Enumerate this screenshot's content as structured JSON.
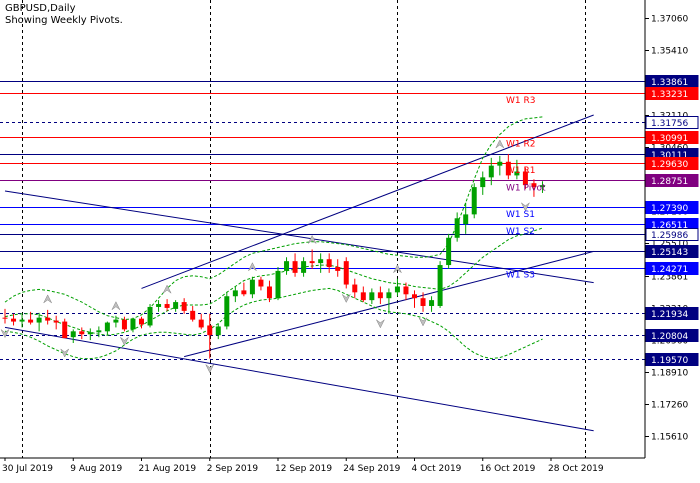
{
  "chart_data": {
    "type": "candlestick",
    "symbol_label": "GBPUSD,Daily",
    "subtitle": "Showing Weekly Pivots.",
    "ylim": [
      1.145,
      1.38
    ],
    "y_ticks": [
      1.3706,
      1.3541,
      1.33761,
      1.3211,
      1.3046,
      1.2881,
      1.2716,
      1.2551,
      1.23861,
      1.2221,
      1.2056,
      1.1891,
      1.1726,
      1.1561
    ],
    "x_tick_labels": [
      "30 Jul 2019",
      "9 Aug 2019",
      "21 Aug 2019",
      "2 Sep 2019",
      "12 Sep 2019",
      "24 Sep 2019",
      "4 Oct 2019",
      "16 Oct 2019",
      "28 Oct 2019"
    ],
    "x_tick_index": [
      0,
      8,
      16,
      24,
      32,
      40,
      48,
      56,
      64
    ],
    "vertical_grid_index": [
      2,
      24,
      46,
      68
    ],
    "num_slots": 70,
    "candles": [
      {
        "o": 1.217,
        "h": 1.2215,
        "l": 1.214,
        "c": 1.2165
      },
      {
        "o": 1.2165,
        "h": 1.219,
        "l": 1.213,
        "c": 1.215
      },
      {
        "o": 1.215,
        "h": 1.2185,
        "l": 1.212,
        "c": 1.216
      },
      {
        "o": 1.216,
        "h": 1.22,
        "l": 1.2135,
        "c": 1.2145
      },
      {
        "o": 1.2145,
        "h": 1.2195,
        "l": 1.21,
        "c": 1.217
      },
      {
        "o": 1.217,
        "h": 1.221,
        "l": 1.2135,
        "c": 1.2155
      },
      {
        "o": 1.2155,
        "h": 1.218,
        "l": 1.211,
        "c": 1.2145
      },
      {
        "o": 1.215,
        "h": 1.2165,
        "l": 1.208,
        "c": 1.2065
      },
      {
        "o": 1.207,
        "h": 1.211,
        "l": 1.204,
        "c": 1.21
      },
      {
        "o": 1.21,
        "h": 1.212,
        "l": 1.206,
        "c": 1.2085
      },
      {
        "o": 1.2085,
        "h": 1.2115,
        "l": 1.2055,
        "c": 1.2095
      },
      {
        "o": 1.2095,
        "h": 1.2125,
        "l": 1.207,
        "c": 1.2105
      },
      {
        "o": 1.21,
        "h": 1.215,
        "l": 1.208,
        "c": 1.2145
      },
      {
        "o": 1.2145,
        "h": 1.218,
        "l": 1.212,
        "c": 1.216
      },
      {
        "o": 1.216,
        "h": 1.2175,
        "l": 1.21,
        "c": 1.211
      },
      {
        "o": 1.211,
        "h": 1.217,
        "l": 1.2095,
        "c": 1.2165
      },
      {
        "o": 1.2165,
        "h": 1.2175,
        "l": 1.2115,
        "c": 1.2135
      },
      {
        "o": 1.213,
        "h": 1.224,
        "l": 1.212,
        "c": 1.2225
      },
      {
        "o": 1.2225,
        "h": 1.226,
        "l": 1.22,
        "c": 1.224
      },
      {
        "o": 1.224,
        "h": 1.2265,
        "l": 1.2205,
        "c": 1.222
      },
      {
        "o": 1.2215,
        "h": 1.226,
        "l": 1.22,
        "c": 1.225
      },
      {
        "o": 1.225,
        "h": 1.227,
        "l": 1.219,
        "c": 1.2205
      },
      {
        "o": 1.2205,
        "h": 1.223,
        "l": 1.215,
        "c": 1.216
      },
      {
        "o": 1.216,
        "h": 1.219,
        "l": 1.211,
        "c": 1.212
      },
      {
        "o": 1.213,
        "h": 1.219,
        "l": 1.196,
        "c": 1.208
      },
      {
        "o": 1.208,
        "h": 1.214,
        "l": 1.206,
        "c": 1.2125
      },
      {
        "o": 1.2125,
        "h": 1.23,
        "l": 1.211,
        "c": 1.228
      },
      {
        "o": 1.228,
        "h": 1.233,
        "l": 1.225,
        "c": 1.231
      },
      {
        "o": 1.231,
        "h": 1.235,
        "l": 1.228,
        "c": 1.229
      },
      {
        "o": 1.229,
        "h": 1.238,
        "l": 1.227,
        "c": 1.2365
      },
      {
        "o": 1.2365,
        "h": 1.238,
        "l": 1.231,
        "c": 1.233
      },
      {
        "o": 1.233,
        "h": 1.236,
        "l": 1.225,
        "c": 1.227
      },
      {
        "o": 1.227,
        "h": 1.243,
        "l": 1.226,
        "c": 1.241
      },
      {
        "o": 1.241,
        "h": 1.248,
        "l": 1.239,
        "c": 1.246
      },
      {
        "o": 1.246,
        "h": 1.25,
        "l": 1.238,
        "c": 1.24
      },
      {
        "o": 1.24,
        "h": 1.248,
        "l": 1.238,
        "c": 1.246
      },
      {
        "o": 1.246,
        "h": 1.252,
        "l": 1.242,
        "c": 1.245
      },
      {
        "o": 1.245,
        "h": 1.25,
        "l": 1.24,
        "c": 1.247
      },
      {
        "o": 1.247,
        "h": 1.25,
        "l": 1.24,
        "c": 1.243
      },
      {
        "o": 1.243,
        "h": 1.247,
        "l": 1.238,
        "c": 1.241
      },
      {
        "o": 1.246,
        "h": 1.248,
        "l": 1.232,
        "c": 1.234
      },
      {
        "o": 1.234,
        "h": 1.237,
        "l": 1.227,
        "c": 1.23
      },
      {
        "o": 1.23,
        "h": 1.233,
        "l": 1.225,
        "c": 1.226
      },
      {
        "o": 1.226,
        "h": 1.232,
        "l": 1.224,
        "c": 1.23
      },
      {
        "o": 1.23,
        "h": 1.233,
        "l": 1.224,
        "c": 1.227
      },
      {
        "o": 1.227,
        "h": 1.232,
        "l": 1.219,
        "c": 1.23
      },
      {
        "o": 1.23,
        "h": 1.237,
        "l": 1.228,
        "c": 1.233
      },
      {
        "o": 1.233,
        "h": 1.235,
        "l": 1.226,
        "c": 1.229
      },
      {
        "o": 1.229,
        "h": 1.231,
        "l": 1.222,
        "c": 1.227
      },
      {
        "o": 1.227,
        "h": 1.23,
        "l": 1.22,
        "c": 1.223
      },
      {
        "o": 1.223,
        "h": 1.228,
        "l": 1.22,
        "c": 1.226
      },
      {
        "o": 1.223,
        "h": 1.246,
        "l": 1.222,
        "c": 1.244
      },
      {
        "o": 1.244,
        "h": 1.26,
        "l": 1.242,
        "c": 1.258
      },
      {
        "o": 1.258,
        "h": 1.271,
        "l": 1.256,
        "c": 1.268
      },
      {
        "o": 1.265,
        "h": 1.276,
        "l": 1.26,
        "c": 1.27
      },
      {
        "o": 1.27,
        "h": 1.286,
        "l": 1.268,
        "c": 1.284
      },
      {
        "o": 1.284,
        "h": 1.292,
        "l": 1.28,
        "c": 1.289
      },
      {
        "o": 1.289,
        "h": 1.299,
        "l": 1.285,
        "c": 1.295
      },
      {
        "o": 1.295,
        "h": 1.3,
        "l": 1.29,
        "c": 1.297
      },
      {
        "o": 1.297,
        "h": 1.301,
        "l": 1.288,
        "c": 1.29
      },
      {
        "o": 1.29,
        "h": 1.298,
        "l": 1.288,
        "c": 1.292
      },
      {
        "o": 1.292,
        "h": 1.294,
        "l": 1.283,
        "c": 1.285
      },
      {
        "o": 1.286,
        "h": 1.288,
        "l": 1.279,
        "c": 1.284
      },
      {
        "o": 1.284,
        "h": 1.287,
        "l": 1.281,
        "c": 1.285
      }
    ],
    "level_lines": [
      {
        "label": "1.33861",
        "value": 1.33861,
        "color": "#000080",
        "box_color": "#000080",
        "text_color": "#ffffff",
        "style": "solid"
      },
      {
        "label": "1.33231",
        "value": 1.33231,
        "color": "#ff0000",
        "box_color": "#ff0000",
        "text_color": "#ffffff",
        "style": "solid"
      },
      {
        "label": "1.31756",
        "value": 1.31756,
        "color": "#000080",
        "box_color": "#ffffff",
        "text_color": "#000080",
        "style": "dotted"
      },
      {
        "label": "1.30991",
        "value": 1.30991,
        "color": "#ff0000",
        "box_color": "#ff0000",
        "text_color": "#ffffff",
        "style": "solid"
      },
      {
        "label": "1.30111",
        "value": 1.30111,
        "color": "#000080",
        "box_color": "#000080",
        "text_color": "#ffffff",
        "style": "solid"
      },
      {
        "label": "1.29630",
        "value": 1.2963,
        "color": "#ff0000",
        "box_color": "#ff0000",
        "text_color": "#ffffff",
        "style": "solid"
      },
      {
        "label": "1.28751",
        "value": 1.28751,
        "color": "#800080",
        "box_color": "#800080",
        "text_color": "#ffffff",
        "style": "solid"
      },
      {
        "label": "1.27390",
        "value": 1.2739,
        "color": "#0000ff",
        "box_color": "#0000ff",
        "text_color": "#ffffff",
        "style": "solid"
      },
      {
        "label": "1.26511",
        "value": 1.26511,
        "color": "#0000ff",
        "box_color": "#0000ff",
        "text_color": "#ffffff",
        "style": "solid"
      },
      {
        "label": "1.25986",
        "value": 1.25986,
        "color": "#000080",
        "box_color": "#ffffff",
        "text_color": "#000080",
        "style": "solid"
      },
      {
        "label": "1.25143",
        "value": 1.25143,
        "color": "#000080",
        "box_color": "#000080",
        "text_color": "#ffffff",
        "style": "solid"
      },
      {
        "label": "1.24271",
        "value": 1.24271,
        "color": "#0000ff",
        "box_color": "#0000ff",
        "text_color": "#ffffff",
        "style": "solid"
      },
      {
        "label": "1.21934",
        "value": 1.21934,
        "color": "#000080",
        "box_color": "#000080",
        "text_color": "#ffffff",
        "style": "dotted"
      },
      {
        "label": "1.20804",
        "value": 1.20804,
        "color": "#000080",
        "box_color": "#000080",
        "text_color": "#ffffff",
        "style": "dotted"
      },
      {
        "label": "1.19570",
        "value": 1.1957,
        "color": "#000080",
        "box_color": "#000080",
        "text_color": "#ffffff",
        "style": "dotted"
      }
    ],
    "pivot_labels": [
      {
        "text": "W1 R3",
        "value": 1.33231,
        "color": "#ff0000"
      },
      {
        "text": "W1 R2",
        "value": 1.30991,
        "color": "#ff0000"
      },
      {
        "text": "W1 R1",
        "value": 1.2963,
        "color": "#ff0000"
      },
      {
        "text": "W1 Pivot",
        "value": 1.28751,
        "color": "#800080"
      },
      {
        "text": "W1 S1",
        "value": 1.2739,
        "color": "#0000ff"
      },
      {
        "text": "W1 S2",
        "value": 1.26511,
        "color": "#0000ff"
      },
      {
        "text": "W1 S3",
        "value": 1.24271,
        "color": "#0000ff"
      }
    ],
    "trend_lines": [
      {
        "from": [
          0,
          1.282
        ],
        "to": [
          69,
          1.235
        ],
        "color": "#000080"
      },
      {
        "from": [
          0,
          1.212
        ],
        "to": [
          69,
          1.159
        ],
        "color": "#000080"
      },
      {
        "from": [
          16,
          1.232
        ],
        "to": [
          69,
          1.321
        ],
        "color": "#000080"
      },
      {
        "from": [
          21,
          1.197
        ],
        "to": [
          69,
          1.251
        ],
        "color": "#000080"
      }
    ],
    "band_upper": [
      1.225,
      1.228,
      1.23,
      1.231,
      1.2315,
      1.231,
      1.23,
      1.229,
      1.227,
      1.225,
      1.2225,
      1.22,
      1.218,
      1.217,
      1.216,
      1.2165,
      1.2185,
      1.222,
      1.227,
      1.232,
      1.236,
      1.238,
      1.2385,
      1.238,
      1.237,
      1.239,
      1.242,
      1.245,
      1.248,
      1.25,
      1.251,
      1.252,
      1.253,
      1.254,
      1.255,
      1.2555,
      1.256,
      1.256,
      1.2555,
      1.255,
      1.2545,
      1.2535,
      1.2525,
      1.2515,
      1.2505,
      1.2495,
      1.249,
      1.2485,
      1.248,
      1.248,
      1.2485,
      1.2495,
      1.255,
      1.265,
      1.276,
      1.288,
      1.299,
      1.306,
      1.311,
      1.315,
      1.3175,
      1.319,
      1.3195,
      1.32
    ],
    "band_lower": [
      1.21,
      1.2095,
      1.2085,
      1.207,
      1.205,
      1.2025,
      1.2005,
      1.1985,
      1.197,
      1.196,
      1.196,
      1.1965,
      1.198,
      1.2,
      1.203,
      1.206,
      1.208,
      1.209,
      1.2095,
      1.2095,
      1.209,
      1.2085,
      1.208,
      1.209,
      1.211,
      1.214,
      1.218,
      1.221,
      1.2235,
      1.225,
      1.226,
      1.2265,
      1.227,
      1.228,
      1.229,
      1.23,
      1.231,
      1.2315,
      1.232,
      1.231,
      1.229,
      1.227,
      1.225,
      1.223,
      1.221,
      1.22,
      1.2195,
      1.219,
      1.218,
      1.217,
      1.215,
      1.213,
      1.21,
      1.206,
      1.202,
      1.199,
      1.197,
      1.196,
      1.1965,
      1.198,
      1.2,
      1.202,
      1.204,
      1.206
    ],
    "band_mid": [
      1.2175,
      1.2185,
      1.219,
      1.219,
      1.2185,
      1.217,
      1.215,
      1.2135,
      1.212,
      1.2105,
      1.2095,
      1.2085,
      1.208,
      1.2085,
      1.2095,
      1.211,
      1.213,
      1.2155,
      1.218,
      1.2205,
      1.2225,
      1.2235,
      1.2235,
      1.2235,
      1.224,
      1.2265,
      1.23,
      1.233,
      1.236,
      1.2375,
      1.2385,
      1.239,
      1.24,
      1.241,
      1.242,
      1.243,
      1.2435,
      1.244,
      1.244,
      1.243,
      1.2415,
      1.24,
      1.2385,
      1.237,
      1.236,
      1.235,
      1.2345,
      1.234,
      1.233,
      1.2325,
      1.232,
      1.2315,
      1.233,
      1.236,
      1.24,
      1.244,
      1.248,
      1.251,
      1.254,
      1.257,
      1.259,
      1.26,
      1.2615,
      1.263
    ],
    "fractals_up": [
      [
        5,
        1.2215
      ],
      [
        13,
        1.218
      ],
      [
        19,
        1.2265
      ],
      [
        29,
        1.238
      ],
      [
        36,
        1.252
      ],
      [
        46,
        1.237
      ],
      [
        58,
        1.301
      ]
    ],
    "fractals_down": [
      [
        0,
        1.214
      ],
      [
        7,
        1.204
      ],
      [
        14,
        1.21
      ],
      [
        24,
        1.196
      ],
      [
        40,
        1.232
      ],
      [
        44,
        1.219
      ],
      [
        49,
        1.22
      ],
      [
        61,
        1.279
      ]
    ],
    "colors": {
      "bull": "#00a000",
      "bear": "#ff0000",
      "grid": "#000000",
      "band": "#00a000",
      "axis": "#000000"
    }
  }
}
